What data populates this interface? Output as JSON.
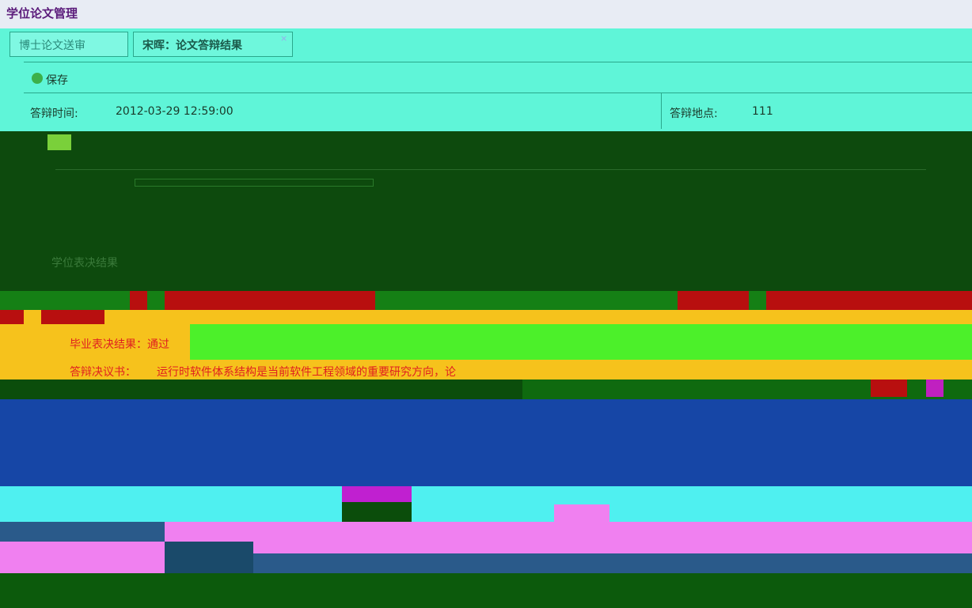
{
  "header": {
    "title": "学位论文管理"
  },
  "tabs": [
    {
      "label": "博士论文送审"
    },
    {
      "label": "宋晖：论文答辩结果"
    }
  ],
  "toolbar": {
    "save": "保存"
  },
  "form": {
    "time_label": "答辩时间:",
    "time_value": "2012-03-29 12:59:00",
    "place_label": "答辩地点:",
    "place_value": "111"
  },
  "sections": {
    "degree_vote": "学位表决结果",
    "graduation_vote": "毕业表决结果：通过",
    "resolution_label": "答辩决议书：",
    "resolution_text": "运行时软件体系结构是当前软件工程领域的重要研究方向，论"
  }
}
